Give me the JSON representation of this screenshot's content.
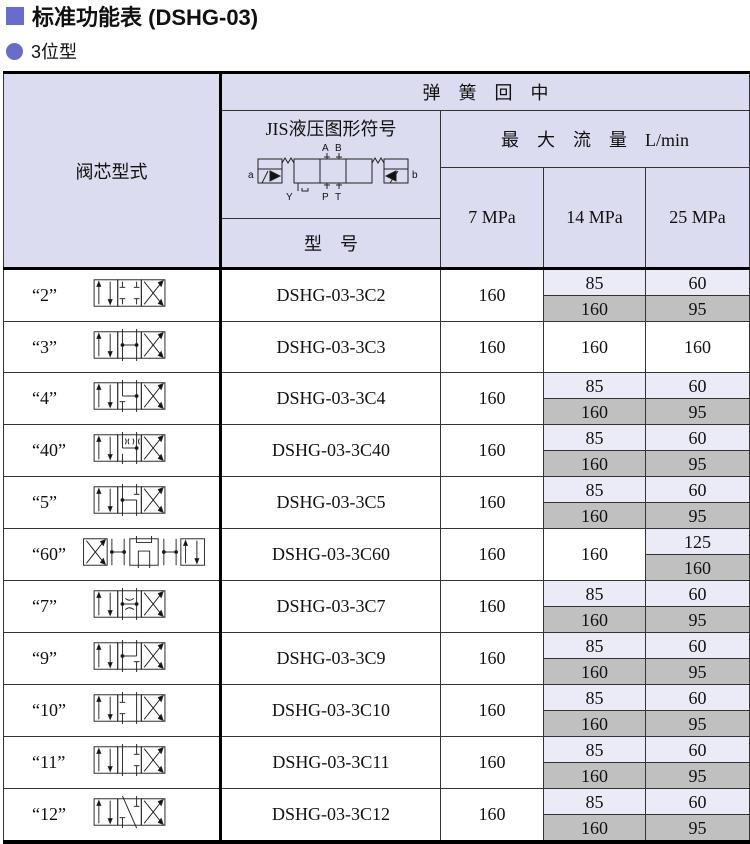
{
  "title": "标准功能表 (DSHG-03)",
  "subtitle": "3位型",
  "accent": "#6a6ccc",
  "header": {
    "spool_type": "阀芯型式",
    "spring_center": "弹　簧　回　中",
    "jis_symbol": "JIS液压图形符号",
    "max_flow": "最　大　流　量　L/min",
    "model": "型　号",
    "pressures": [
      "7 MPa",
      "14 MPa",
      "25 MPa"
    ],
    "symbol_labels": {
      "a": "a",
      "b": "b",
      "A": "A",
      "B": "B",
      "Y": "Y",
      "P": "P",
      "T": "T"
    }
  },
  "rows": [
    {
      "spool": "“2”",
      "center": "closed",
      "model": "DSHG-03-3C2",
      "p7": "160",
      "p14": [
        "85",
        "160"
      ],
      "p25": [
        "60",
        "95"
      ]
    },
    {
      "spool": "“3”",
      "center": "tandem-open",
      "model": "DSHG-03-3C3",
      "p7": "160",
      "p14": [
        "160"
      ],
      "p25": [
        "160"
      ]
    },
    {
      "spool": "“4”",
      "center": "abt",
      "model": "DSHG-03-3C4",
      "p7": "160",
      "p14": [
        "85",
        "160"
      ],
      "p25": [
        "60",
        "95"
      ]
    },
    {
      "spool": "“40”",
      "center": "orifice",
      "model": "DSHG-03-3C40",
      "p7": "160",
      "p14": [
        "85",
        "160"
      ],
      "p25": [
        "60",
        "95"
      ]
    },
    {
      "spool": "“5”",
      "center": "pa",
      "model": "DSHG-03-3C5",
      "p7": "160",
      "p14": [
        "85",
        "160"
      ],
      "p25": [
        "60",
        "95"
      ]
    },
    {
      "spool": "“60”",
      "center": "five-position",
      "model": "DSHG-03-3C60",
      "p7": "160",
      "p14": [
        "160"
      ],
      "p25": [
        "125",
        "160"
      ]
    },
    {
      "spool": "“7”",
      "center": "throttle",
      "model": "DSHG-03-3C7",
      "p7": "160",
      "p14": [
        "85",
        "160"
      ],
      "p25": [
        "60",
        "95"
      ]
    },
    {
      "spool": "“9”",
      "center": "pa-t",
      "model": "DSHG-03-3C9",
      "p7": "160",
      "p14": [
        "85",
        "160"
      ],
      "p25": [
        "60",
        "95"
      ]
    },
    {
      "spool": "“10”",
      "center": "a-open",
      "model": "DSHG-03-3C10",
      "p7": "160",
      "p14": [
        "85",
        "160"
      ],
      "p25": [
        "60",
        "95"
      ]
    },
    {
      "spool": "“11”",
      "center": "b-open",
      "model": "DSHG-03-3C11",
      "p7": "160",
      "p14": [
        "85",
        "160"
      ],
      "p25": [
        "60",
        "95"
      ]
    },
    {
      "spool": "“12”",
      "center": "diag",
      "model": "DSHG-03-3C12",
      "p7": "160",
      "p14": [
        "85",
        "160"
      ],
      "p25": [
        "60",
        "95"
      ]
    }
  ]
}
